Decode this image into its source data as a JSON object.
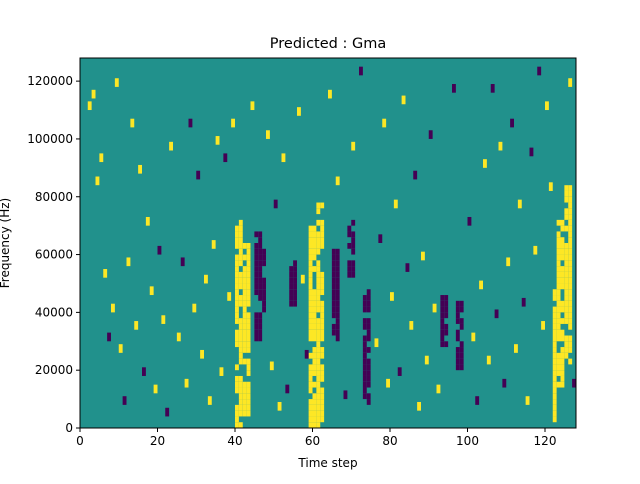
{
  "chart_data": {
    "type": "heatmap",
    "title": "Predicted : Gma",
    "xlabel": "Time step",
    "ylabel": "Frequency (Hz)",
    "xlim": [
      0,
      128
    ],
    "ylim": [
      0,
      128000
    ],
    "x_ticks": [
      0,
      20,
      40,
      60,
      80,
      100,
      120
    ],
    "y_ticks": [
      0,
      20000,
      40000,
      60000,
      80000,
      100000,
      120000
    ],
    "x_tick_labels": [
      "0",
      "20",
      "40",
      "60",
      "80",
      "100",
      "120"
    ],
    "y_tick_labels": [
      "0",
      "20000",
      "40000",
      "60000",
      "80000",
      "100000",
      "120000"
    ],
    "grid": false,
    "n_time_steps": 128,
    "n_freq_bins": 128,
    "colormap": "viridis",
    "value_levels": [
      -1,
      0,
      1
    ],
    "level_colors": {
      "-1": "#440154",
      "0": "#21918c",
      "1": "#fde725"
    },
    "background_level": 0,
    "bands": [
      {
        "t0": 40,
        "t1": 42,
        "f0": 0,
        "f1": 72000,
        "v": 1
      },
      {
        "t0": 42,
        "t1": 44,
        "f0": 4000,
        "f1": 64000,
        "v": 1
      },
      {
        "t0": 45,
        "t1": 47,
        "f0": 30000,
        "f1": 68000,
        "v": -1
      },
      {
        "t0": 47,
        "t1": 48,
        "f0": 40000,
        "f1": 62000,
        "v": -1
      },
      {
        "t0": 59,
        "t1": 61,
        "f0": 0,
        "f1": 70000,
        "v": 1
      },
      {
        "t0": 61,
        "t1": 63,
        "f0": 0,
        "f1": 78000,
        "v": 1
      },
      {
        "t0": 54,
        "t1": 56,
        "f0": 42000,
        "f1": 58000,
        "v": -1
      },
      {
        "t0": 65,
        "t1": 67,
        "f0": 30000,
        "f1": 62000,
        "v": -1
      },
      {
        "t0": 69,
        "t1": 71,
        "f0": 52000,
        "f1": 72000,
        "v": -1
      },
      {
        "t0": 73,
        "t1": 75,
        "f0": 8000,
        "f1": 48000,
        "v": -1
      },
      {
        "t0": 93,
        "t1": 95,
        "f0": 28000,
        "f1": 46000,
        "v": -1
      },
      {
        "t0": 97,
        "t1": 99,
        "f0": 20000,
        "f1": 44000,
        "v": -1
      },
      {
        "t0": 123,
        "t1": 125,
        "f0": 14000,
        "f1": 72000,
        "v": 1
      },
      {
        "t0": 125,
        "t1": 127,
        "f0": 22000,
        "f1": 84000,
        "v": 1
      },
      {
        "t0": 122,
        "t1": 123,
        "f0": 2000,
        "f1": 48000,
        "v": 1
      }
    ],
    "cells": [
      {
        "t": 1,
        "f": 0,
        "v": 0
      },
      {
        "t": 2,
        "f": 110000,
        "v": 1
      },
      {
        "t": 3,
        "f": 114000,
        "v": 1
      },
      {
        "t": 4,
        "f": 84000,
        "v": 1
      },
      {
        "t": 5,
        "f": 92000,
        "v": 1
      },
      {
        "t": 6,
        "f": 52000,
        "v": 1
      },
      {
        "t": 7,
        "f": 30000,
        "v": -1
      },
      {
        "t": 8,
        "f": 40000,
        "v": 1
      },
      {
        "t": 9,
        "f": 118000,
        "v": 1
      },
      {
        "t": 10,
        "f": 26000,
        "v": 1
      },
      {
        "t": 11,
        "f": 8000,
        "v": -1
      },
      {
        "t": 12,
        "f": 56000,
        "v": 1
      },
      {
        "t": 13,
        "f": 104000,
        "v": 1
      },
      {
        "t": 14,
        "f": 34000,
        "v": 1
      },
      {
        "t": 15,
        "f": 88000,
        "v": 1
      },
      {
        "t": 16,
        "f": 18000,
        "v": -1
      },
      {
        "t": 17,
        "f": 70000,
        "v": 1
      },
      {
        "t": 18,
        "f": 46000,
        "v": 1
      },
      {
        "t": 19,
        "f": 12000,
        "v": 1
      },
      {
        "t": 20,
        "f": 60000,
        "v": -1
      },
      {
        "t": 21,
        "f": 36000,
        "v": 1
      },
      {
        "t": 22,
        "f": 4000,
        "v": -1
      },
      {
        "t": 23,
        "f": 96000,
        "v": 1
      },
      {
        "t": 25,
        "f": 30000,
        "v": 1
      },
      {
        "t": 26,
        "f": 56000,
        "v": -1
      },
      {
        "t": 27,
        "f": 14000,
        "v": 1
      },
      {
        "t": 28,
        "f": 104000,
        "v": -1
      },
      {
        "t": 29,
        "f": 40000,
        "v": 1
      },
      {
        "t": 30,
        "f": 86000,
        "v": -1
      },
      {
        "t": 31,
        "f": 24000,
        "v": 1
      },
      {
        "t": 32,
        "f": 50000,
        "v": 1
      },
      {
        "t": 33,
        "f": 8000,
        "v": 1
      },
      {
        "t": 34,
        "f": 62000,
        "v": 1
      },
      {
        "t": 35,
        "f": 98000,
        "v": 1
      },
      {
        "t": 36,
        "f": 18000,
        "v": 1
      },
      {
        "t": 37,
        "f": 92000,
        "v": -1
      },
      {
        "t": 38,
        "f": 44000,
        "v": 1
      },
      {
        "t": 39,
        "f": 104000,
        "v": 1
      },
      {
        "t": 44,
        "f": 110000,
        "v": 1
      },
      {
        "t": 48,
        "f": 100000,
        "v": 1
      },
      {
        "t": 49,
        "f": 20000,
        "v": 1
      },
      {
        "t": 50,
        "f": 76000,
        "v": -1
      },
      {
        "t": 51,
        "f": 6000,
        "v": 1
      },
      {
        "t": 52,
        "f": 92000,
        "v": 1
      },
      {
        "t": 53,
        "f": 12000,
        "v": -1
      },
      {
        "t": 56,
        "f": 108000,
        "v": 1
      },
      {
        "t": 57,
        "f": 50000,
        "v": 1
      },
      {
        "t": 58,
        "f": 24000,
        "v": -1
      },
      {
        "t": 64,
        "f": 114000,
        "v": 1
      },
      {
        "t": 66,
        "f": 84000,
        "v": 1
      },
      {
        "t": 68,
        "f": 10000,
        "v": -1
      },
      {
        "t": 70,
        "f": 96000,
        "v": 1
      },
      {
        "t": 72,
        "f": 122000,
        "v": -1
      },
      {
        "t": 76,
        "f": 28000,
        "v": 1
      },
      {
        "t": 77,
        "f": 64000,
        "v": -1
      },
      {
        "t": 78,
        "f": 104000,
        "v": 1
      },
      {
        "t": 79,
        "f": 14000,
        "v": 1
      },
      {
        "t": 80,
        "f": 44000,
        "v": 1
      },
      {
        "t": 81,
        "f": 76000,
        "v": 1
      },
      {
        "t": 82,
        "f": 18000,
        "v": -1
      },
      {
        "t": 83,
        "f": 112000,
        "v": 1
      },
      {
        "t": 84,
        "f": 54000,
        "v": -1
      },
      {
        "t": 85,
        "f": 34000,
        "v": 1
      },
      {
        "t": 86,
        "f": 86000,
        "v": -1
      },
      {
        "t": 87,
        "f": 6000,
        "v": 1
      },
      {
        "t": 88,
        "f": 58000,
        "v": 1
      },
      {
        "t": 89,
        "f": 22000,
        "v": 1
      },
      {
        "t": 90,
        "f": 100000,
        "v": -1
      },
      {
        "t": 91,
        "f": 40000,
        "v": 1
      },
      {
        "t": 92,
        "f": 12000,
        "v": 1
      },
      {
        "t": 96,
        "f": 116000,
        "v": -1
      },
      {
        "t": 100,
        "f": 70000,
        "v": -1
      },
      {
        "t": 101,
        "f": 30000,
        "v": 1
      },
      {
        "t": 102,
        "f": 8000,
        "v": -1
      },
      {
        "t": 103,
        "f": 48000,
        "v": 1
      },
      {
        "t": 104,
        "f": 90000,
        "v": 1
      },
      {
        "t": 105,
        "f": 22000,
        "v": 1
      },
      {
        "t": 106,
        "f": 116000,
        "v": -1
      },
      {
        "t": 107,
        "f": 38000,
        "v": -1
      },
      {
        "t": 108,
        "f": 96000,
        "v": 1
      },
      {
        "t": 109,
        "f": 14000,
        "v": -1
      },
      {
        "t": 110,
        "f": 56000,
        "v": 1
      },
      {
        "t": 111,
        "f": 104000,
        "v": -1
      },
      {
        "t": 112,
        "f": 26000,
        "v": 1
      },
      {
        "t": 113,
        "f": 76000,
        "v": 1
      },
      {
        "t": 114,
        "f": 42000,
        "v": -1
      },
      {
        "t": 115,
        "f": 8000,
        "v": 1
      },
      {
        "t": 116,
        "f": 94000,
        "v": -1
      },
      {
        "t": 117,
        "f": 60000,
        "v": 1
      },
      {
        "t": 118,
        "f": 122000,
        "v": -1
      },
      {
        "t": 119,
        "f": 34000,
        "v": 1
      },
      {
        "t": 120,
        "f": 110000,
        "v": 1
      },
      {
        "t": 121,
        "f": 82000,
        "v": 1
      },
      {
        "t": 126,
        "f": 118000,
        "v": 1
      },
      {
        "t": 127,
        "f": 14000,
        "v": -1
      }
    ]
  }
}
